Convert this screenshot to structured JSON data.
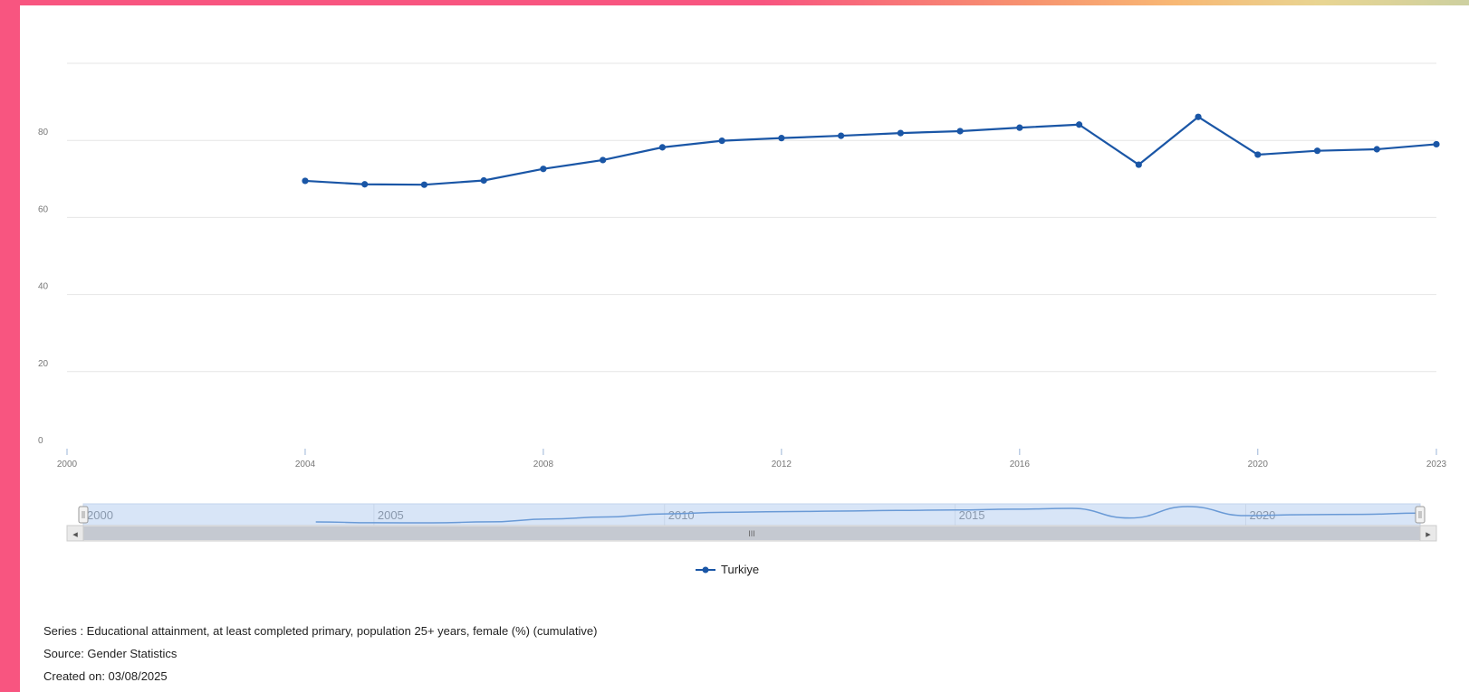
{
  "chart_data": {
    "type": "line",
    "x": [
      2004,
      2005,
      2006,
      2007,
      2008,
      2009,
      2010,
      2011,
      2012,
      2013,
      2014,
      2015,
      2016,
      2017,
      2018,
      2019,
      2020,
      2021,
      2022,
      2023
    ],
    "series": [
      {
        "name": "Turkiye",
        "values": [
          69.5,
          68.6,
          68.5,
          69.6,
          72.6,
          74.9,
          78.2,
          79.9,
          80.6,
          81.2,
          81.9,
          82.4,
          83.3,
          84.1,
          73.7,
          86.1,
          76.3,
          77.3,
          77.7,
          79.0
        ],
        "color": "#1a56a6"
      }
    ],
    "xlim": [
      2000,
      2023
    ],
    "ylim": [
      0,
      100
    ],
    "x_ticks": [
      "2000",
      "2004",
      "2008",
      "2012",
      "2016",
      "2020",
      "2023"
    ],
    "y_ticks": [
      "0",
      "20",
      "40",
      "60",
      "80"
    ],
    "navigator_labels": [
      "2000",
      "2005",
      "2010",
      "2015",
      "2020"
    ],
    "grid": true,
    "legend": "bottom-center"
  },
  "navigator": {
    "scroll_grip": "III",
    "left_arrow": "◂",
    "right_arrow": "▸"
  },
  "legend": {
    "label": "Turkiye"
  },
  "footer": {
    "series": "Series : Educational attainment, at least completed primary, population 25+ years, female (%) (cumulative)",
    "source": "Source: Gender Statistics",
    "created": "Created on: 03/08/2025"
  }
}
